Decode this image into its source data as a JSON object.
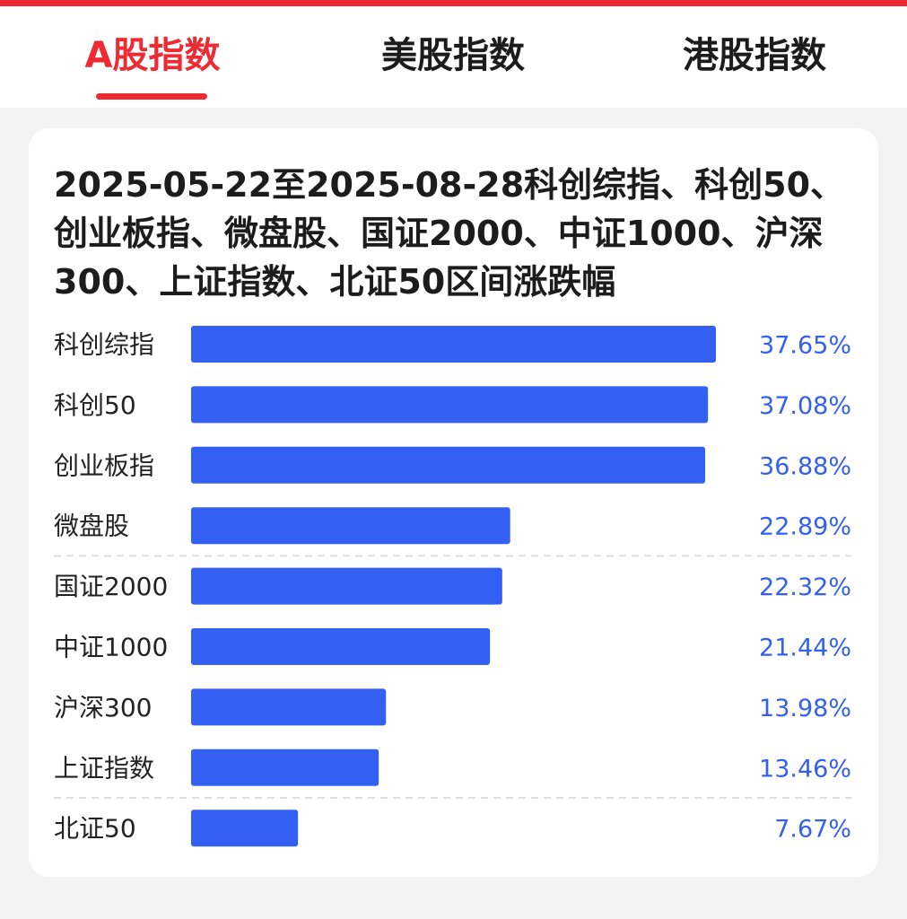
{
  "tabs": [
    {
      "label": "A股指数",
      "active": true
    },
    {
      "label": "美股指数",
      "active": false
    },
    {
      "label": "港股指数",
      "active": false
    }
  ],
  "colors": {
    "accent": "#ee2a33",
    "bar": "#3360f2",
    "value_text": "#3360f2",
    "label_text": "#222222",
    "divider": "#dddddd"
  },
  "chart_data": {
    "type": "bar",
    "orientation": "horizontal",
    "title": "2025-05-22至2025-08-28科创综指、科创50、创业板指、微盘股、国证2000、中证1000、沪深300、上证指数、北证50区间涨跌幅",
    "categories": [
      "科创综指",
      "科创50",
      "创业板指",
      "微盘股",
      "国证2000",
      "中证1000",
      "沪深300",
      "上证指数",
      "北证50"
    ],
    "values": [
      37.65,
      37.08,
      36.88,
      22.89,
      22.32,
      21.44,
      13.98,
      13.46,
      7.67
    ],
    "value_labels": [
      "37.65%",
      "37.08%",
      "36.88%",
      "22.89%",
      "22.32%",
      "21.44%",
      "13.98%",
      "13.46%",
      "7.67%"
    ],
    "unit": "%",
    "xlim": [
      0,
      37.65
    ],
    "grid": false,
    "dividers_after": [
      "微盘股",
      "上证指数"
    ]
  }
}
